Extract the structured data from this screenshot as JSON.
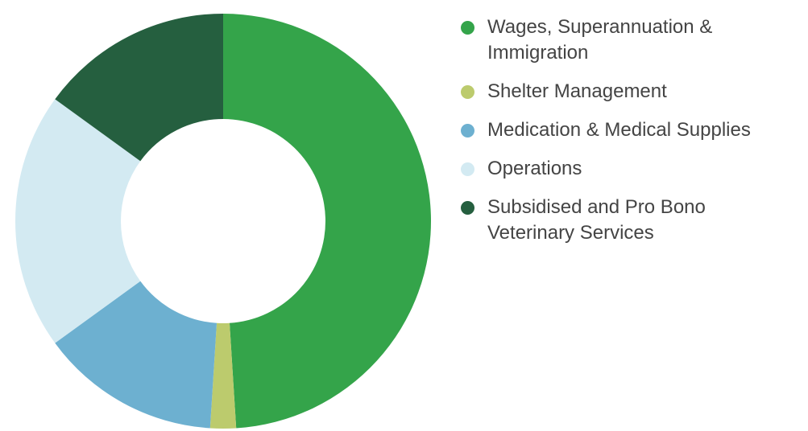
{
  "chart_data": {
    "type": "donut",
    "categories": [
      "Wages, Superannuation & Immigration",
      "Shelter Management",
      "Medication & Medical Supplies",
      "Operations",
      "Subsidised and Pro Bono Veterinary Services"
    ],
    "values": [
      49,
      2,
      14,
      20,
      15
    ],
    "colors": [
      "#34a44a",
      "#bccb6d",
      "#6db0d0",
      "#d3eaf2",
      "#255f3f"
    ]
  }
}
